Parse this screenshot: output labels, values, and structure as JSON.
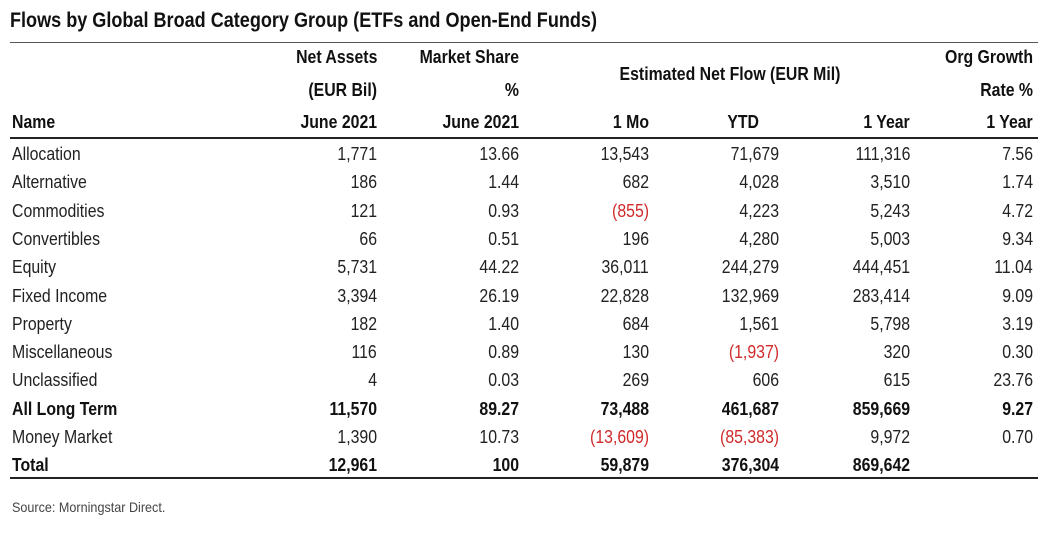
{
  "title": "Flows by Global Broad Category Group (ETFs and Open-End Funds)",
  "header": {
    "name": "Name",
    "net_assets": [
      "Net Assets",
      "(EUR Bil)",
      "June 2021"
    ],
    "market_share": [
      "Market Share",
      "%",
      "June 2021"
    ],
    "est_net_flow": "Estimated Net Flow (EUR Mil)",
    "mo1": "1 Mo",
    "ytd": "YTD",
    "year1": "1 Year",
    "org_growth": [
      "Org Growth",
      "Rate %",
      "1 Year"
    ]
  },
  "negative_color": "#d02a2a",
  "rows": [
    {
      "name": "Allocation",
      "net_assets": "1,771",
      "market_share": "13.66",
      "mo1": "13,543",
      "ytd": "71,679",
      "year1": "111,316",
      "org": "7.56"
    },
    {
      "name": "Alternative",
      "net_assets": "186",
      "market_share": "1.44",
      "mo1": "682",
      "ytd": "4,028",
      "year1": "3,510",
      "org": "1.74"
    },
    {
      "name": "Commodities",
      "net_assets": "121",
      "market_share": "0.93",
      "mo1": "(855)",
      "ytd": "4,223",
      "year1": "5,243",
      "org": "4.72"
    },
    {
      "name": "Convertibles",
      "net_assets": "66",
      "market_share": "0.51",
      "mo1": "196",
      "ytd": "4,280",
      "year1": "5,003",
      "org": "9.34"
    },
    {
      "name": "Equity",
      "net_assets": "5,731",
      "market_share": "44.22",
      "mo1": "36,011",
      "ytd": "244,279",
      "year1": "444,451",
      "org": "11.04"
    },
    {
      "name": "Fixed Income",
      "net_assets": "3,394",
      "market_share": "26.19",
      "mo1": "22,828",
      "ytd": "132,969",
      "year1": "283,414",
      "org": "9.09"
    },
    {
      "name": "Property",
      "net_assets": "182",
      "market_share": "1.40",
      "mo1": "684",
      "ytd": "1,561",
      "year1": "5,798",
      "org": "3.19"
    },
    {
      "name": "Miscellaneous",
      "net_assets": "116",
      "market_share": "0.89",
      "mo1": "130",
      "ytd": "(1,937)",
      "year1": "320",
      "org": "0.30"
    },
    {
      "name": "Unclassified",
      "net_assets": "4",
      "market_share": "0.03",
      "mo1": "269",
      "ytd": "606",
      "year1": "615",
      "org": "23.76"
    },
    {
      "name": "All Long Term",
      "net_assets": "11,570",
      "market_share": "89.27",
      "mo1": "73,488",
      "ytd": "461,687",
      "year1": "859,669",
      "org": "9.27",
      "bold": true
    },
    {
      "name": "Money Market",
      "net_assets": "1,390",
      "market_share": "10.73",
      "mo1": "(13,609)",
      "ytd": "(85,383)",
      "year1": "9,972",
      "org": "0.70"
    },
    {
      "name": "Total",
      "net_assets": "12,961",
      "market_share": "100",
      "mo1": "59,879",
      "ytd": "376,304",
      "year1": "869,642",
      "org": "",
      "bold": true
    }
  ],
  "source": "Source: Morningstar Direct."
}
